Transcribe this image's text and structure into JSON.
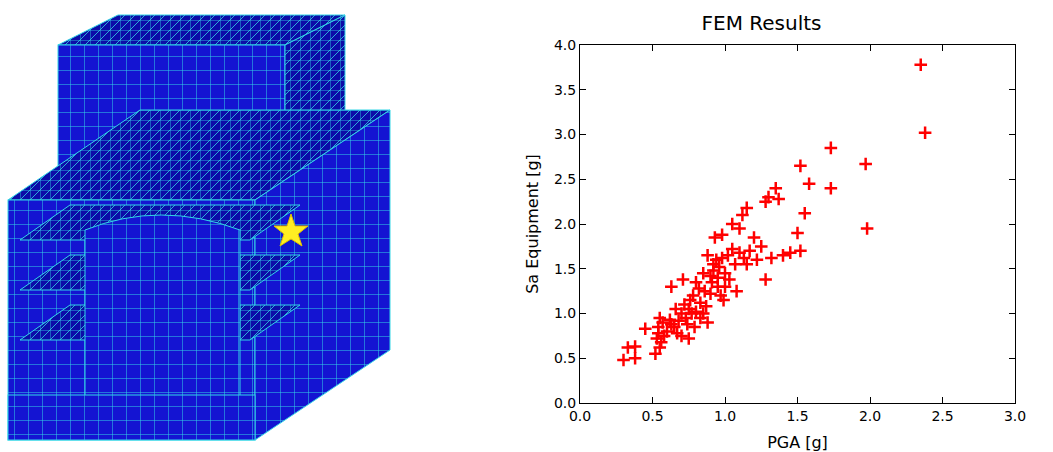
{
  "chart_data": {
    "type": "scatter",
    "title": "FEM Results",
    "x_label": "PGA [g]",
    "y_label": "Sa Equipment [g]",
    "x": [
      0.3,
      0.33,
      0.38,
      0.38,
      0.45,
      0.52,
      0.53,
      0.54,
      0.54,
      0.55,
      0.55,
      0.56,
      0.57,
      0.58,
      0.6,
      0.62,
      0.63,
      0.63,
      0.65,
      0.66,
      0.67,
      0.68,
      0.7,
      0.7,
      0.71,
      0.72,
      0.73,
      0.74,
      0.75,
      0.75,
      0.76,
      0.77,
      0.78,
      0.79,
      0.8,
      0.8,
      0.82,
      0.83,
      0.83,
      0.85,
      0.85,
      0.86,
      0.87,
      0.88,
      0.88,
      0.9,
      0.9,
      0.91,
      0.92,
      0.92,
      0.93,
      0.94,
      0.95,
      0.95,
      0.96,
      0.97,
      0.98,
      0.98,
      0.99,
      1.0,
      1.0,
      1.02,
      1.03,
      1.05,
      1.05,
      1.07,
      1.08,
      1.1,
      1.1,
      1.12,
      1.13,
      1.15,
      1.15,
      1.17,
      1.2,
      1.22,
      1.25,
      1.28,
      1.28,
      1.3,
      1.32,
      1.35,
      1.37,
      1.4,
      1.45,
      1.5,
      1.52,
      1.52,
      1.55,
      1.58,
      1.73,
      1.73,
      1.97,
      1.98,
      2.35,
      2.38
    ],
    "values": [
      0.48,
      0.62,
      0.5,
      0.63,
      0.83,
      0.55,
      0.72,
      0.85,
      0.78,
      0.95,
      0.62,
      0.68,
      0.9,
      0.75,
      0.8,
      0.93,
      1.3,
      0.88,
      0.85,
      1.05,
      0.78,
      0.92,
      1.0,
      0.75,
      1.38,
      1.1,
      0.95,
      0.88,
      1.05,
      0.72,
      1.15,
      1.0,
      1.2,
      0.85,
      1.35,
      1.02,
      1.28,
      1.12,
      0.95,
      1.0,
      1.45,
      1.25,
      1.08,
      1.65,
      0.9,
      1.42,
      1.22,
      1.35,
      1.55,
      1.48,
      1.85,
      1.6,
      1.4,
      1.3,
      1.52,
      1.2,
      1.88,
      1.62,
      1.15,
      1.45,
      1.3,
      1.65,
      1.38,
      2.0,
      1.72,
      1.55,
      1.25,
      1.95,
      1.68,
      2.1,
      1.62,
      2.18,
      1.55,
      1.7,
      1.85,
      1.6,
      1.75,
      2.25,
      1.38,
      2.3,
      1.62,
      2.4,
      2.28,
      1.65,
      1.68,
      1.9,
      2.65,
      1.7,
      2.12,
      2.45,
      2.85,
      2.4,
      2.67,
      1.95,
      3.78,
      3.02
    ],
    "color": "#ff0000",
    "marker": "plus",
    "grid": false,
    "xlim": [
      0,
      3
    ],
    "xticks": [
      {
        "value": 0,
        "label": "0.0"
      },
      0.5,
      {
        "value": 1,
        "label": "1.0"
      },
      1.5,
      {
        "value": 2,
        "label": "2.0"
      },
      2.5,
      {
        "value": 3,
        "label": "3.0"
      }
    ],
    "ylim": [
      0,
      4
    ],
    "yticks": [
      {
        "value": 0,
        "label": "0.0"
      },
      0.5,
      {
        "value": 1,
        "label": "1.0"
      },
      1.5,
      {
        "value": 2,
        "label": "2.0"
      },
      2.5,
      {
        "value": 3,
        "label": "3.0"
      },
      3.5,
      {
        "value": 4,
        "label": "4.0"
      }
    ]
  }
}
